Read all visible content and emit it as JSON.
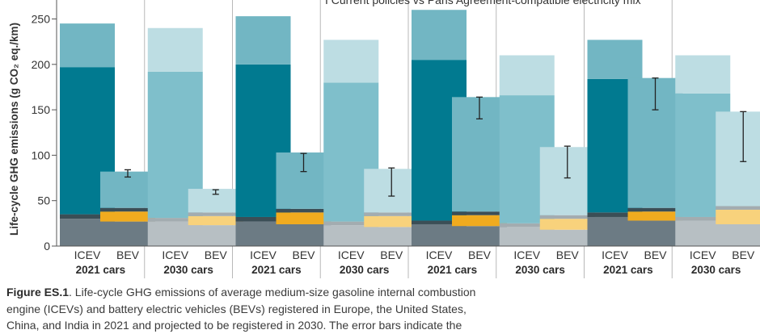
{
  "chart_data": {
    "type": "bar",
    "stacked": true,
    "ylabel": "Life-cycle GHG emissions (g CO₂ eq./km)",
    "ylim": [
      0,
      260
    ],
    "yticks": [
      0,
      50,
      100,
      150,
      200,
      250
    ],
    "legend_note": "I  Current policies vs Paris Agreement-compatible electricity mix",
    "groups": [
      {
        "label": "2021 cars"
      },
      {
        "label": "2030 cars"
      },
      {
        "label": "2021 cars"
      },
      {
        "label": "2030 cars"
      },
      {
        "label": "2021 cars"
      },
      {
        "label": "2030 cars"
      },
      {
        "label": "2021 cars"
      },
      {
        "label": "2030 cars"
      }
    ],
    "bars": [
      {
        "group": 0,
        "label": "ICEV",
        "era": "2021",
        "total": 245,
        "segments": [
          {
            "value": 30,
            "color": "#6c7b84"
          },
          {
            "value": 5,
            "color": "#3b4e56"
          },
          {
            "value": 162,
            "color": "#017a90"
          },
          {
            "value": 48,
            "color": "#72b6c3"
          }
        ]
      },
      {
        "group": 0,
        "label": "BEV",
        "era": "2021",
        "total": 82,
        "segments": [
          {
            "value": 27,
            "color": "#6c7b84"
          },
          {
            "value": 11,
            "color": "#f0ab1f"
          },
          {
            "value": 4,
            "color": "#3b4e56"
          },
          {
            "value": 40,
            "color": "#72b6c3"
          }
        ],
        "error": [
          76,
          84
        ]
      },
      {
        "group": 1,
        "label": "ICEV",
        "era": "2030",
        "total": 240,
        "segments": [
          {
            "value": 27,
            "color": "#b7bfc3"
          },
          {
            "value": 4,
            "color": "#a3acb0"
          },
          {
            "value": 161,
            "color": "#7fbfcb"
          },
          {
            "value": 48,
            "color": "#bddde3"
          }
        ]
      },
      {
        "group": 1,
        "label": "BEV",
        "era": "2030",
        "total": 63,
        "segments": [
          {
            "value": 23,
            "color": "#b7bfc3"
          },
          {
            "value": 10,
            "color": "#f8d27c"
          },
          {
            "value": 4,
            "color": "#a3acb0"
          },
          {
            "value": 26,
            "color": "#bddde3"
          }
        ],
        "error": [
          57,
          62
        ]
      },
      {
        "group": 2,
        "label": "ICEV",
        "era": "2021",
        "total": 253,
        "segments": [
          {
            "value": 27,
            "color": "#6c7b84"
          },
          {
            "value": 5,
            "color": "#3b4e56"
          },
          {
            "value": 168,
            "color": "#017a90"
          },
          {
            "value": 53,
            "color": "#72b6c3"
          }
        ]
      },
      {
        "group": 2,
        "label": "BEV",
        "era": "2021",
        "total": 103,
        "segments": [
          {
            "value": 24,
            "color": "#6c7b84"
          },
          {
            "value": 13,
            "color": "#f0ab1f"
          },
          {
            "value": 4,
            "color": "#3b4e56"
          },
          {
            "value": 62,
            "color": "#72b6c3"
          }
        ],
        "error": [
          82,
          102
        ]
      },
      {
        "group": 3,
        "label": "ICEV",
        "era": "2030",
        "total": 227,
        "segments": [
          {
            "value": 23,
            "color": "#b7bfc3"
          },
          {
            "value": 4,
            "color": "#a3acb0"
          },
          {
            "value": 153,
            "color": "#7fbfcb"
          },
          {
            "value": 47,
            "color": "#bddde3"
          }
        ]
      },
      {
        "group": 3,
        "label": "BEV",
        "era": "2030",
        "total": 85,
        "segments": [
          {
            "value": 21,
            "color": "#b7bfc3"
          },
          {
            "value": 12,
            "color": "#f8d27c"
          },
          {
            "value": 4,
            "color": "#a3acb0"
          },
          {
            "value": 48,
            "color": "#bddde3"
          }
        ],
        "error": [
          55,
          86
        ]
      },
      {
        "group": 4,
        "label": "ICEV",
        "era": "2021",
        "total": 260,
        "segments": [
          {
            "value": 24,
            "color": "#6c7b84"
          },
          {
            "value": 4,
            "color": "#3b4e56"
          },
          {
            "value": 177,
            "color": "#017a90"
          },
          {
            "value": 55,
            "color": "#72b6c3"
          }
        ]
      },
      {
        "group": 4,
        "label": "BEV",
        "era": "2021",
        "total": 164,
        "segments": [
          {
            "value": 22,
            "color": "#6c7b84"
          },
          {
            "value": 12,
            "color": "#f0ab1f"
          },
          {
            "value": 4,
            "color": "#3b4e56"
          },
          {
            "value": 126,
            "color": "#72b6c3"
          }
        ],
        "error": [
          140,
          164
        ]
      },
      {
        "group": 5,
        "label": "ICEV",
        "era": "2030",
        "total": 210,
        "segments": [
          {
            "value": 21,
            "color": "#b7bfc3"
          },
          {
            "value": 4,
            "color": "#a3acb0"
          },
          {
            "value": 141,
            "color": "#7fbfcb"
          },
          {
            "value": 44,
            "color": "#bddde3"
          }
        ]
      },
      {
        "group": 5,
        "label": "BEV",
        "era": "2030",
        "total": 109,
        "segments": [
          {
            "value": 18,
            "color": "#b7bfc3"
          },
          {
            "value": 12,
            "color": "#f8d27c"
          },
          {
            "value": 4,
            "color": "#a3acb0"
          },
          {
            "value": 75,
            "color": "#bddde3"
          }
        ],
        "error": [
          75,
          110
        ]
      },
      {
        "group": 6,
        "label": "ICEV",
        "era": "2021",
        "total": 227,
        "segments": [
          {
            "value": 32,
            "color": "#6c7b84"
          },
          {
            "value": 5,
            "color": "#3b4e56"
          },
          {
            "value": 147,
            "color": "#017a90"
          },
          {
            "value": 43,
            "color": "#72b6c3"
          }
        ]
      },
      {
        "group": 6,
        "label": "BEV",
        "era": "2021",
        "total": 185,
        "segments": [
          {
            "value": 28,
            "color": "#6c7b84"
          },
          {
            "value": 10,
            "color": "#f0ab1f"
          },
          {
            "value": 4,
            "color": "#3b4e56"
          },
          {
            "value": 143,
            "color": "#72b6c3"
          }
        ],
        "error": [
          150,
          185
        ]
      },
      {
        "group": 7,
        "label": "ICEV",
        "era": "2030",
        "total": 210,
        "segments": [
          {
            "value": 28,
            "color": "#b7bfc3"
          },
          {
            "value": 4,
            "color": "#a3acb0"
          },
          {
            "value": 136,
            "color": "#7fbfcb"
          },
          {
            "value": 42,
            "color": "#bddde3"
          }
        ]
      },
      {
        "group": 7,
        "label": "BEV",
        "era": "2030",
        "total": 148,
        "segments": [
          {
            "value": 24,
            "color": "#b7bfc3"
          },
          {
            "value": 16,
            "color": "#f8d27c"
          },
          {
            "value": 4,
            "color": "#a3acb0"
          },
          {
            "value": 104,
            "color": "#bddde3"
          }
        ],
        "error": [
          93,
          148
        ]
      }
    ]
  },
  "caption": {
    "label": "Figure ES.1",
    "line1": ". Life-cycle GHG emissions of average medium-size gasoline internal combustion",
    "line2": "engine (ICEVs) and battery electric vehicles (BEVs) registered in Europe, the United States,",
    "line3": "China, and India in 2021 and projected to be registered in 2030. The error bars indicate the"
  }
}
